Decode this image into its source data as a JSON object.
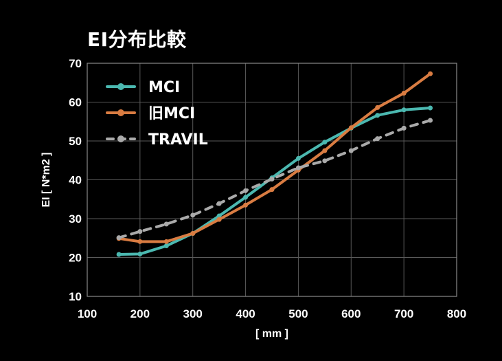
{
  "title": "EI分布比較",
  "chart_data": {
    "type": "line",
    "title": "EI分布比較",
    "xlabel": "[ mm ]",
    "ylabel": "EI [ N*m2 ]",
    "xlim": [
      100,
      800
    ],
    "ylim": [
      10,
      70
    ],
    "xticks": [
      100,
      200,
      300,
      400,
      500,
      600,
      700,
      800
    ],
    "yticks": [
      10,
      20,
      30,
      40,
      50,
      60,
      70
    ],
    "grid": true,
    "legend_position": "top-left",
    "series": [
      {
        "name": "MCI",
        "color": "#4bb8b0",
        "style": "solid",
        "x": [
          160,
          200,
          250,
          300,
          350,
          400,
          450,
          500,
          550,
          600,
          650,
          700,
          750
        ],
        "y": [
          20.8,
          20.9,
          23.0,
          26.2,
          30.7,
          35.5,
          40.5,
          45.5,
          49.7,
          53.3,
          56.6,
          58.0,
          58.5
        ]
      },
      {
        "name": "旧MCI",
        "color": "#d97c42",
        "style": "solid",
        "x": [
          160,
          200,
          250,
          300,
          350,
          400,
          450,
          500,
          550,
          600,
          650,
          700,
          750
        ],
        "y": [
          24.9,
          24.1,
          24.1,
          26.2,
          29.8,
          33.5,
          37.5,
          42.5,
          47.5,
          53.4,
          58.6,
          62.3,
          67.3
        ]
      },
      {
        "name": "TRAVIL",
        "color": "#aaaaaa",
        "style": "dashed",
        "x": [
          160,
          200,
          250,
          300,
          350,
          400,
          450,
          500,
          550,
          600,
          650,
          700,
          750
        ],
        "y": [
          25.1,
          26.7,
          28.6,
          30.9,
          33.9,
          37.2,
          40.2,
          43.1,
          44.9,
          47.5,
          50.6,
          53.3,
          55.3
        ]
      }
    ]
  }
}
